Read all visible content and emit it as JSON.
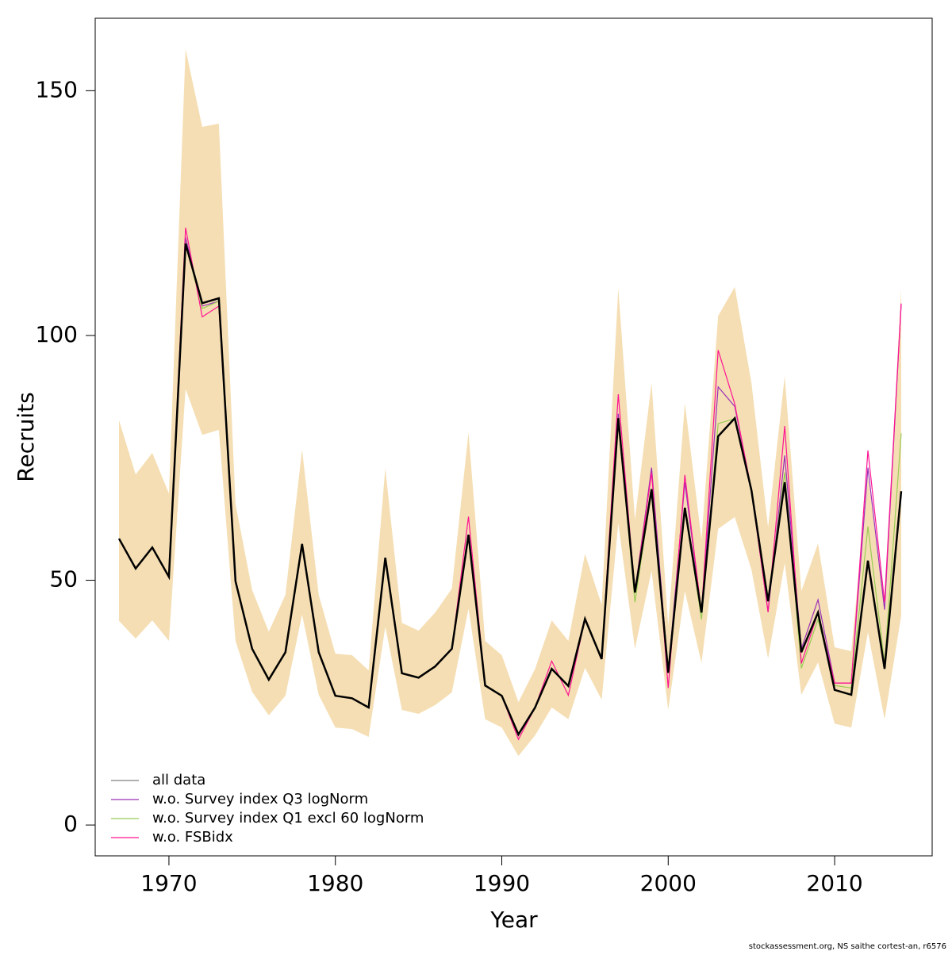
{
  "chart_data": {
    "type": "line",
    "x_label": "Year",
    "y_label": "Recruits",
    "footnote": "stockassessment.org, NS saithe cortest-an, r6576",
    "x": [
      1967,
      1968,
      1969,
      1970,
      1971,
      1972,
      1973,
      1974,
      1975,
      1976,
      1977,
      1978,
      1979,
      1980,
      1981,
      1982,
      1983,
      1984,
      1985,
      1986,
      1987,
      1988,
      1989,
      1990,
      1991,
      1992,
      1993,
      1994,
      1995,
      1996,
      1997,
      1998,
      1999,
      2000,
      2001,
      2002,
      2003,
      2004,
      2005,
      2006,
      2007,
      2008,
      2009,
      2010,
      2011,
      2012,
      2013,
      2014
    ],
    "band": {
      "color": "#f5deb3",
      "upper": [
        82.7,
        71.6,
        76,
        67.7,
        158.5,
        142.6,
        143.3,
        65.6,
        48,
        39.5,
        47,
        76.7,
        47,
        35,
        34.7,
        31.6,
        72.9,
        41.3,
        39.7,
        43.4,
        48.3,
        80.2,
        37.6,
        34.7,
        25.1,
        31.9,
        41.8,
        37.6,
        55.4,
        45,
        109.7,
        62.4,
        90.3,
        40.8,
        86.2,
        58.3,
        104,
        109.9,
        90.3,
        60.8,
        91.7,
        47.8,
        57.5,
        36.3,
        35.5,
        71.3,
        45.4,
        109.6
      ],
      "lower": [
        41.7,
        38.1,
        41.8,
        37.6,
        89.1,
        79.7,
        80.7,
        37.6,
        27.2,
        22.4,
        26.4,
        43,
        26.6,
        19.9,
        19.6,
        18,
        40.5,
        23.5,
        22.7,
        24.5,
        27.1,
        44.2,
        21.6,
        19.9,
        14.1,
        18.3,
        24,
        21.6,
        32.1,
        25.6,
        61.6,
        36,
        51.9,
        23.5,
        47.8,
        33.1,
        60.5,
        62.9,
        52.2,
        34,
        53.5,
        26.6,
        33.2,
        20.7,
        19.9,
        39.4,
        21.6,
        42.8
      ]
    },
    "series": [
      {
        "name": "all data",
        "color": "#000000",
        "values": [
          58.5,
          52.4,
          56.7,
          50.7,
          118.8,
          106.6,
          107.6,
          49.8,
          36,
          29.7,
          35.3,
          57.4,
          35.3,
          26.4,
          25.9,
          24,
          54.6,
          31,
          30.1,
          32.4,
          36,
          59.3,
          28.5,
          26.4,
          18.5,
          24,
          31.9,
          28.4,
          42.1,
          33.9,
          83.1,
          47.5,
          68.6,
          31.1,
          64.8,
          43.4,
          79.4,
          83.1,
          68.4,
          45.7,
          70,
          35.3,
          43.4,
          27.6,
          26.6,
          54,
          31.9,
          68.2
        ]
      },
      {
        "name": "w.o. Survey index Q3 logNorm",
        "color": "#9b30b8",
        "values": [
          58.5,
          52.4,
          56.7,
          50.7,
          120,
          106,
          107,
          49.8,
          36,
          29.7,
          35.3,
          57.4,
          35.3,
          26.4,
          25.9,
          24,
          54.6,
          31,
          30.1,
          32.4,
          36,
          59.3,
          28.5,
          26.4,
          18.5,
          24,
          31.9,
          28.4,
          42.1,
          33.9,
          84,
          47.5,
          73,
          31.1,
          70,
          43.4,
          89.5,
          85.5,
          68.4,
          43.5,
          75.5,
          36,
          46,
          29,
          29,
          73,
          44,
          106.5
        ]
      },
      {
        "name": "w.o. Survey index Q1 excl 60 logNorm",
        "color": "#99cc55",
        "values": [
          58.5,
          52.4,
          56.7,
          50.7,
          118.8,
          105.5,
          107,
          49.8,
          36,
          29.7,
          35.3,
          57.4,
          35.3,
          26.4,
          25.9,
          24,
          54.6,
          31,
          30.1,
          32.4,
          36,
          59.3,
          28.5,
          26.4,
          18.5,
          24,
          31.9,
          28.4,
          42.1,
          33.9,
          83.1,
          45.5,
          68.6,
          31.1,
          64.8,
          42,
          82,
          83,
          68.4,
          45.7,
          72,
          32,
          42,
          28.5,
          28,
          61,
          33,
          80
        ]
      },
      {
        "name": "w.o. FSBidx",
        "color": "#ff1493",
        "values": [
          58.5,
          52.4,
          56.7,
          50.7,
          122,
          103.8,
          106,
          49.8,
          36,
          29.7,
          35.3,
          57.4,
          35.3,
          26.4,
          25.9,
          24,
          54.6,
          31,
          30.1,
          32.4,
          36,
          63,
          28.5,
          26.4,
          17.5,
          24,
          33.5,
          26.5,
          42.1,
          33.9,
          88,
          47.5,
          72,
          28,
          71.5,
          43.4,
          97,
          86,
          68.4,
          43.5,
          81.5,
          33,
          43.4,
          29,
          29,
          76.5,
          45.5,
          106.5
        ]
      }
    ],
    "xlim": [
      1965.57,
      2015.86
    ],
    "ylim": [
      -6.3,
      164.8
    ],
    "xticks": [
      1970,
      1980,
      1990,
      2000,
      2010
    ],
    "yticks": [
      0,
      50,
      100,
      150
    ],
    "legend": "bottom-left"
  }
}
